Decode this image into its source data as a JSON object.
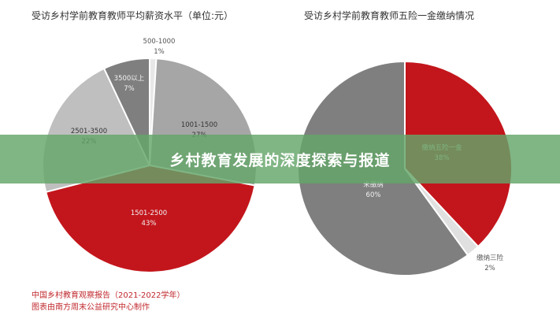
{
  "chart_data": [
    {
      "type": "pie",
      "title": "受访乡村学前教育教师平均薪资水平（单位:元）",
      "slices": [
        {
          "label": "500-1000",
          "value": 1,
          "value_label": "1%",
          "color": "#e8e8e8"
        },
        {
          "label": "1001-1500",
          "value": 27,
          "value_label": "27%",
          "color": "#a6a6a6"
        },
        {
          "label": "1501-2500",
          "value": 43,
          "value_label": "43%",
          "color": "#c3161c"
        },
        {
          "label": "2501-3500",
          "value": 22,
          "value_label": "22%",
          "color": "#bfbfbf"
        },
        {
          "label": "3500以上",
          "value": 7,
          "value_label": "7%",
          "color": "#7f7f7f"
        }
      ]
    },
    {
      "type": "pie",
      "title": "受访乡村学前教育教师五险一金缴纳情况",
      "slices": [
        {
          "label": "缴纳五险一金",
          "value": 38,
          "value_label": "38%",
          "color": "#c3161c"
        },
        {
          "label": "缴纳三险",
          "value": 2,
          "value_label": "2%",
          "color": "#e0e0e0"
        },
        {
          "label": "未缴纳",
          "value": 60,
          "value_label": "60%",
          "color": "#7f7f7f"
        }
      ]
    }
  ],
  "source_lines": [
    "中国乡村教育观察报告（2021-2022学年）",
    "图表由南方周末公益研究中心制作"
  ],
  "banner": {
    "text": "乡村教育发展的深度探索与报道"
  }
}
